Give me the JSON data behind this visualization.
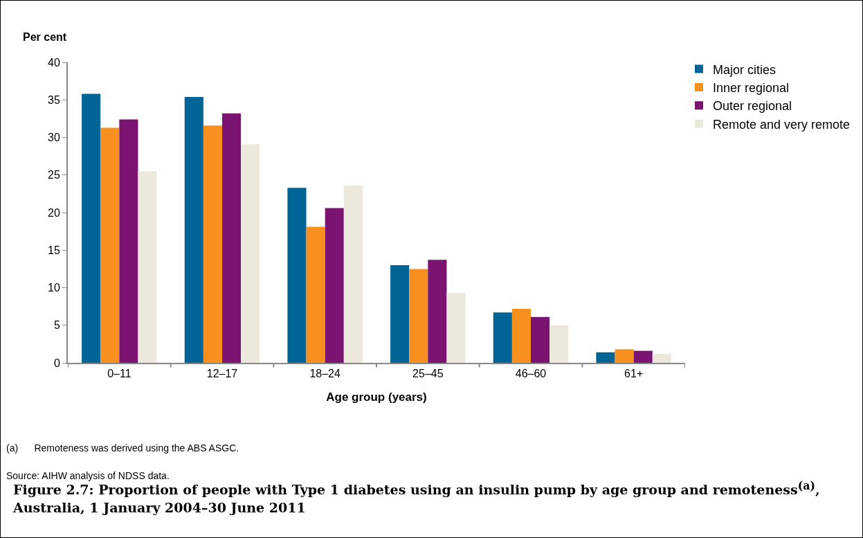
{
  "chart_data": {
    "type": "bar",
    "title": "Figure 2.7: Proportion of people with Type 1 diabetes using an insulin pump by age group and remoteness$^{(a)}$, Australia, 1 January 2004–30 June 2011",
    "xlabel": "Age group (years)",
    "ylabel": "Per cent",
    "categories": [
      "0–11",
      "12–17",
      "18–24",
      "25–45",
      "46–60",
      "61+"
    ],
    "series": [
      {
        "name": "Major cities",
        "color": "#006596",
        "values": [
          35.8,
          35.4,
          23.3,
          13.0,
          6.7,
          1.4
        ]
      },
      {
        "name": "Inner regional",
        "color": "#f7901e",
        "values": [
          31.3,
          31.6,
          18.1,
          12.5,
          7.2,
          1.8
        ]
      },
      {
        "name": "Outer regional",
        "color": "#7b1470",
        "values": [
          32.4,
          33.2,
          20.6,
          13.7,
          6.1,
          1.6
        ]
      },
      {
        "name": "Remote and very remote",
        "color": "#ece9dc",
        "values": [
          25.5,
          29.1,
          23.6,
          9.3,
          5.0,
          1.2
        ]
      }
    ],
    "ylim": [
      0,
      40
    ],
    "yticks": [
      0,
      5,
      10,
      15,
      20,
      25,
      30,
      35,
      40
    ],
    "grid": false,
    "legend": "top right",
    "annotations": [
      "(a)      Remoteness was derived using the ABS ASGC.",
      "Source: AIHW analysis of NDSS data."
    ]
  }
}
